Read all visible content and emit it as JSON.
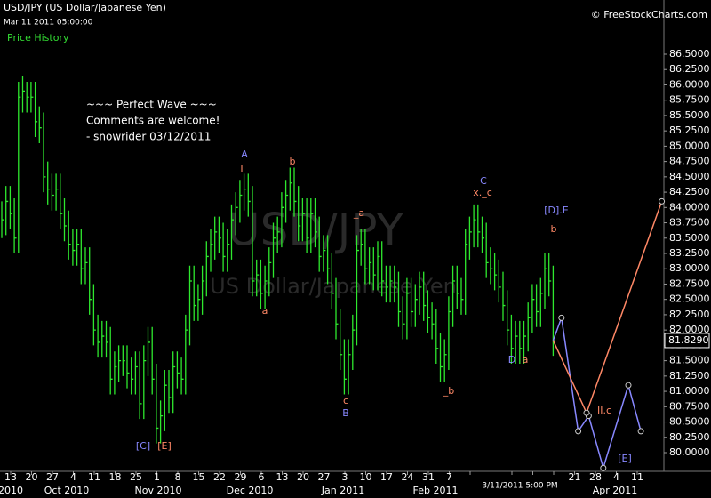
{
  "chart_data": {
    "type": "ohlc",
    "title": "USD/JPY (US Dollar/Japanese Yen)",
    "timestamp": "Mar 11 2011 05:00:00",
    "source": "© FreeStockCharts.com",
    "panel_label": "Price History",
    "watermark": "USD/JPY",
    "watermark_sub": "US Dollar/Japanese Yen",
    "comment": [
      "~~~ Perfect Wave ~~~",
      "Comments are welcome!",
      "- snowrider  03/12/2011"
    ],
    "cursor_label": "3/11/2011 5:00 PM",
    "color": "#2ee82e",
    "close": [
      83.8,
      84.1,
      83.9,
      83.5,
      85.8,
      85.9,
      85.8,
      85.8,
      85.4,
      85.3,
      84.5,
      84.3,
      84.2,
      84.3,
      83.9,
      83.7,
      83.4,
      83.3,
      83.4,
      83.0,
      83.1,
      82.5,
      82.0,
      81.8,
      81.9,
      81.8,
      81.2,
      81.4,
      81.5,
      81.5,
      81.3,
      81.2,
      81.4,
      80.8,
      81.5,
      81.8,
      81.2,
      80.4,
      80.6,
      81.1,
      80.9,
      81.4,
      81.3,
      81.2,
      82.0,
      82.8,
      82.4,
      82.5,
      82.8,
      83.2,
      83.4,
      83.6,
      83.5,
      83.2,
      83.4,
      83.8,
      84.0,
      84.2,
      84.3,
      84.1,
      82.8,
      82.9,
      82.6,
      82.8,
      83.1,
      83.5,
      83.6,
      84.0,
      84.2,
      84.4,
      84.1,
      83.7,
      83.9,
      83.5,
      83.9,
      83.6,
      83.2,
      83.3,
      83.0,
      82.6,
      82.1,
      81.6,
      81.2,
      81.6,
      82.0,
      83.3,
      83.4,
      83.0,
      83.1,
      82.9,
      83.2,
      82.8,
      82.7,
      82.8,
      82.7,
      82.3,
      82.1,
      82.6,
      82.3,
      82.5,
      82.7,
      82.4,
      82.2,
      82.1,
      81.7,
      81.4,
      81.6,
      82.3,
      82.8,
      82.6,
      82.5,
      83.4,
      83.6,
      83.8,
      83.6,
      83.5,
      83.1,
      83.0,
      82.9,
      82.7,
      82.4,
      82.0,
      81.7,
      81.9,
      81.7,
      81.9,
      82.2,
      82.5,
      82.3,
      82.6,
      83.0,
      82.8,
      81.83
    ],
    "high": [
      84.1,
      84.35,
      84.35,
      84.15,
      86.05,
      86.15,
      86.05,
      86.05,
      86.05,
      85.65,
      85.55,
      84.75,
      84.55,
      84.55,
      84.55,
      84.15,
      83.95,
      83.65,
      83.65,
      83.65,
      83.35,
      83.35,
      82.75,
      82.25,
      82.15,
      82.15,
      82.05,
      81.65,
      81.75,
      81.75,
      81.75,
      81.55,
      81.65,
      81.65,
      81.75,
      82.05,
      82.05,
      81.45,
      80.85,
      81.35,
      81.35,
      81.65,
      81.65,
      81.55,
      82.25,
      83.05,
      83.05,
      82.75,
      83.05,
      83.45,
      83.65,
      83.85,
      83.85,
      83.75,
      83.65,
      84.05,
      84.25,
      84.45,
      84.55,
      84.55,
      84.35,
      83.15,
      83.15,
      83.05,
      83.35,
      83.75,
      83.85,
      84.25,
      84.45,
      84.65,
      84.65,
      84.35,
      84.15,
      84.15,
      84.15,
      84.15,
      83.85,
      83.55,
      83.55,
      83.25,
      82.85,
      82.35,
      81.85,
      81.85,
      82.25,
      83.55,
      83.65,
      83.65,
      83.35,
      83.35,
      83.45,
      83.45,
      83.05,
      83.05,
      83.05,
      82.95,
      82.55,
      82.85,
      82.85,
      82.75,
      82.95,
      82.95,
      82.65,
      82.45,
      82.35,
      81.95,
      81.85,
      82.55,
      83.05,
      83.05,
      82.85,
      83.65,
      83.85,
      84.05,
      84.05,
      83.85,
      83.75,
      83.35,
      83.25,
      83.15,
      82.95,
      82.65,
      82.25,
      82.15,
      82.15,
      82.15,
      82.45,
      82.75,
      82.75,
      82.85,
      83.25,
      83.25,
      83.05
    ],
    "low": [
      83.5,
      83.55,
      83.65,
      83.25,
      83.25,
      85.55,
      85.55,
      85.55,
      85.15,
      85.05,
      84.25,
      84.05,
      83.95,
      83.95,
      83.65,
      83.45,
      83.15,
      83.05,
      83.05,
      82.75,
      82.75,
      82.25,
      81.75,
      81.55,
      81.55,
      81.55,
      80.95,
      80.95,
      81.15,
      81.25,
      81.05,
      80.95,
      80.95,
      80.55,
      80.55,
      81.25,
      80.95,
      80.15,
      80.15,
      80.35,
      80.65,
      80.65,
      81.05,
      80.95,
      80.95,
      81.75,
      82.15,
      82.15,
      82.25,
      82.55,
      82.95,
      83.15,
      83.25,
      82.95,
      82.95,
      83.15,
      83.55,
      83.75,
      83.95,
      83.85,
      82.55,
      82.55,
      82.35,
      82.35,
      82.55,
      82.85,
      83.25,
      83.35,
      83.75,
      83.95,
      83.85,
      83.45,
      83.45,
      83.25,
      83.25,
      83.35,
      82.95,
      82.95,
      82.75,
      82.35,
      81.85,
      81.35,
      80.95,
      80.95,
      81.35,
      81.75,
      83.05,
      82.75,
      82.75,
      82.65,
      82.65,
      82.55,
      82.45,
      82.45,
      82.45,
      82.05,
      81.85,
      81.85,
      82.05,
      82.05,
      82.25,
      82.15,
      81.95,
      81.85,
      81.45,
      81.15,
      81.15,
      81.35,
      82.05,
      82.35,
      82.25,
      82.25,
      83.15,
      83.35,
      83.35,
      83.25,
      82.85,
      82.75,
      82.65,
      82.45,
      82.15,
      81.75,
      81.45,
      81.45,
      81.45,
      81.45,
      81.65,
      81.95,
      82.05,
      82.05,
      82.35,
      82.55,
      81.58
    ],
    "projections": [
      {
        "color": "#8888ff",
        "x": [
          132,
          134,
          138,
          140.5,
          144,
          150,
          153
        ],
        "y": [
          81.83,
          82.2,
          80.35,
          80.6,
          79.75,
          81.1,
          80.35
        ]
      },
      {
        "color": "#ff8866",
        "x": [
          132,
          140,
          158
        ],
        "y": [
          81.83,
          80.65,
          84.1
        ]
      }
    ],
    "annotations": [
      {
        "text": "A",
        "color": "#8888ff"
      },
      {
        "text": "I",
        "color": "#ff8866"
      },
      {
        "text": "b",
        "color": "#ff8866"
      },
      {
        "text": "a",
        "color": "#ff8866"
      },
      {
        "text": "_a",
        "color": "#ff8866"
      },
      {
        "text": "c",
        "color": "#ff8866"
      },
      {
        "text": "B",
        "color": "#8888ff"
      },
      {
        "text": "C",
        "color": "#8888ff"
      },
      {
        "text": "x._c",
        "color": "#ff8866"
      },
      {
        "text": "[D].E",
        "color": "#8888ff"
      },
      {
        "text": "b",
        "color": "#ff8866"
      },
      {
        "text": "D",
        "color": "#8888ff"
      },
      {
        "text": "a",
        "color": "#ff8866"
      },
      {
        "text": "_b",
        "color": "#ff8866"
      },
      {
        "text": "II.c",
        "color": "#ff8866"
      },
      {
        "text": "[E]",
        "color": "#8888ff"
      },
      {
        "text": "[C]",
        "color": "#8888ff"
      },
      {
        "text": "[E]",
        "color": "#ff8866"
      }
    ],
    "last_price": {
      "value": 81.829,
      "label": "81.8290"
    },
    "ylim": [
      79.6,
      86.5
    ],
    "yticks": [
      {
        "value": 86.5,
        "label": "86.5000"
      },
      {
        "value": 86.25,
        "label": "86.2500"
      },
      {
        "value": 86,
        "label": "86.0000"
      },
      {
        "value": 85.75,
        "label": "85.7500"
      },
      {
        "value": 85.5,
        "label": "85.5000"
      },
      {
        "value": 85.25,
        "label": "85.2500"
      },
      {
        "value": 85,
        "label": "85.0000"
      },
      {
        "value": 84.75,
        "label": "84.7500"
      },
      {
        "value": 84.5,
        "label": "84.5000"
      },
      {
        "value": 84.25,
        "label": "84.2500"
      },
      {
        "value": 84,
        "label": "84.0000"
      },
      {
        "value": 83.75,
        "label": "83.7500"
      },
      {
        "value": 83.5,
        "label": "83.5000"
      },
      {
        "value": 83.25,
        "label": "83.2500"
      },
      {
        "value": 83,
        "label": "83.0000"
      },
      {
        "value": 82.75,
        "label": "82.7500"
      },
      {
        "value": 82.5,
        "label": "82.5000"
      },
      {
        "value": 82.25,
        "label": "82.2500"
      },
      {
        "value": 82,
        "label": "82.0000"
      },
      {
        "value": 81.75,
        "label": "81.7500"
      },
      {
        "value": 81.5,
        "label": "81.5000"
      },
      {
        "value": 81.25,
        "label": "81.2500"
      },
      {
        "value": 81,
        "label": "81.0000"
      },
      {
        "value": 80.75,
        "label": "80.7500"
      },
      {
        "value": 80.5,
        "label": "80.5000"
      },
      {
        "value": 80.25,
        "label": "80.2500"
      },
      {
        "value": 80,
        "label": "80.0000"
      }
    ],
    "categories": [
      "13",
      "20",
      "27",
      "4",
      "11",
      "18",
      "25",
      "1",
      "8",
      "15",
      "22",
      "29",
      "6",
      "13",
      "20",
      "27",
      "3",
      "10",
      "17",
      "24",
      "31",
      "7",
      null,
      null,
      null,
      null,
      null,
      "21",
      "28",
      "4",
      "11"
    ],
    "months": [
      "2010",
      "Oct 2010",
      "Nov 2010",
      "Dec 2010",
      "Jan 2011",
      "Feb 2011",
      "Apr 2011"
    ]
  }
}
